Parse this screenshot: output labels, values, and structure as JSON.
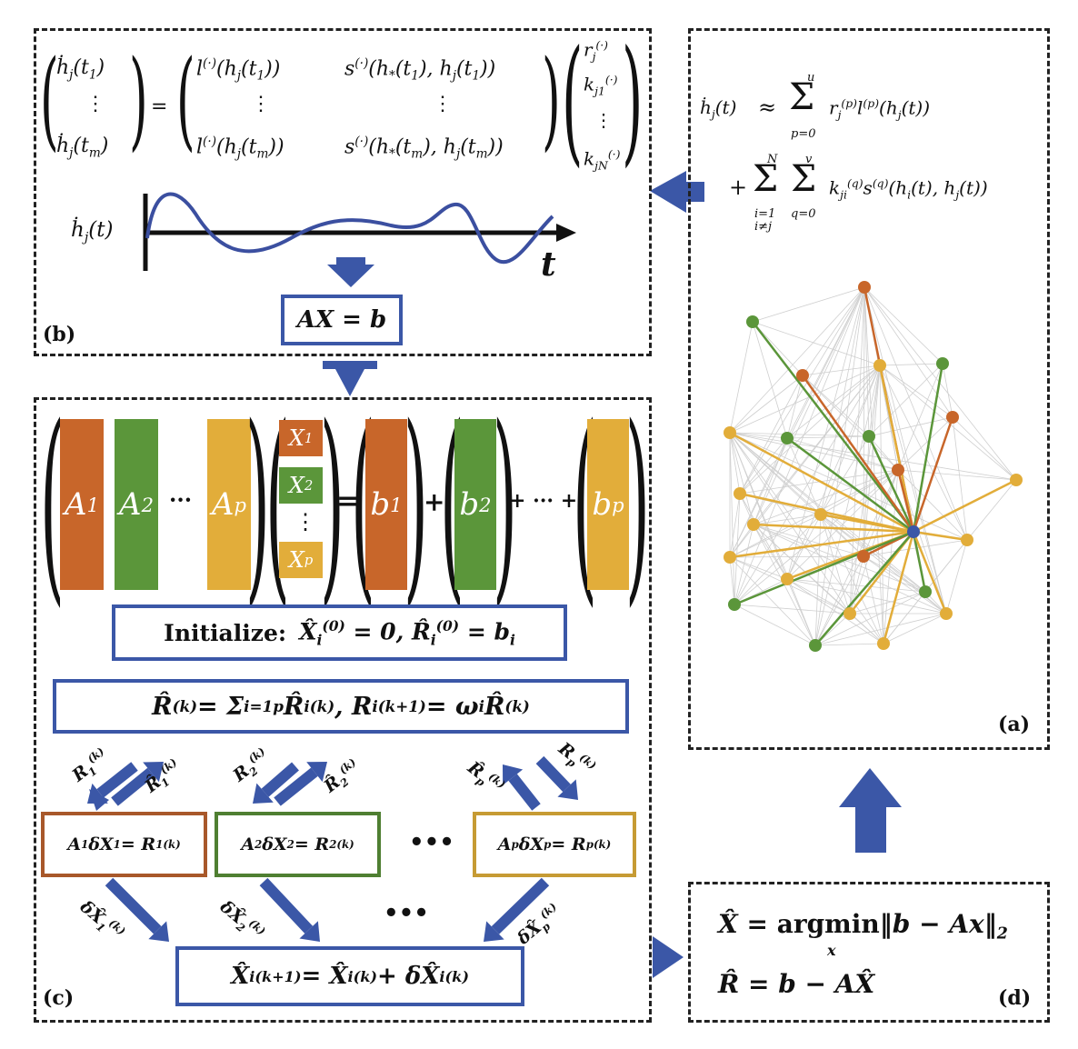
{
  "colors": {
    "orange": "#c8662a",
    "green": "#5b963a",
    "yellow": "#e2ad3a",
    "blue": "#3b57a7",
    "edge_gray": "#cfcfcf"
  },
  "panels": {
    "a_label": "(a)",
    "b_label": "(b)",
    "c_label": "(c)",
    "d_label": "(d)"
  },
  "panel_b": {
    "lhs_top": "ḣ",
    "lhs_top_sub": "j",
    "lhs_top_arg": "(t",
    "lhs_top_arg_sub": "1",
    "lhs_dots": "⋮",
    "lhs_bottom_sub": "m",
    "equals": "=",
    "m11": "l",
    "m12": "s",
    "op_sup": "(·)",
    "curve_label": "ḣ",
    "axis_t": "t",
    "axb": "AX = b"
  },
  "panel_a": {
    "eq_line1_lhs": "ḣ",
    "approx": "≈",
    "sum_top_u": "u",
    "sum_bot_p": "p=0",
    "sum_top_N": "N",
    "sum_bot_i1": "i=1",
    "sum_bot_i2": "i≠j",
    "sum_top_v": "v",
    "sum_bot_q": "q=0",
    "plus": "+"
  },
  "panel_c": {
    "col_labels": [
      "A",
      "A",
      "A"
    ],
    "col_subs": [
      "1",
      "2",
      "p"
    ],
    "ellipsis": "···",
    "x_labels": [
      "X",
      "X",
      "X"
    ],
    "x_subs": [
      "1",
      "2",
      "p"
    ],
    "vdots": "⋮",
    "b_labels": [
      "b",
      "b",
      "b"
    ],
    "b_subs": [
      "1",
      "2",
      "p"
    ],
    "plus": "+",
    "plus_dots": "+ ··· +",
    "equals": "=",
    "init_word": "Initialize:",
    "subproblem_dots": "•••",
    "bottom_dots": "•••"
  }
}
